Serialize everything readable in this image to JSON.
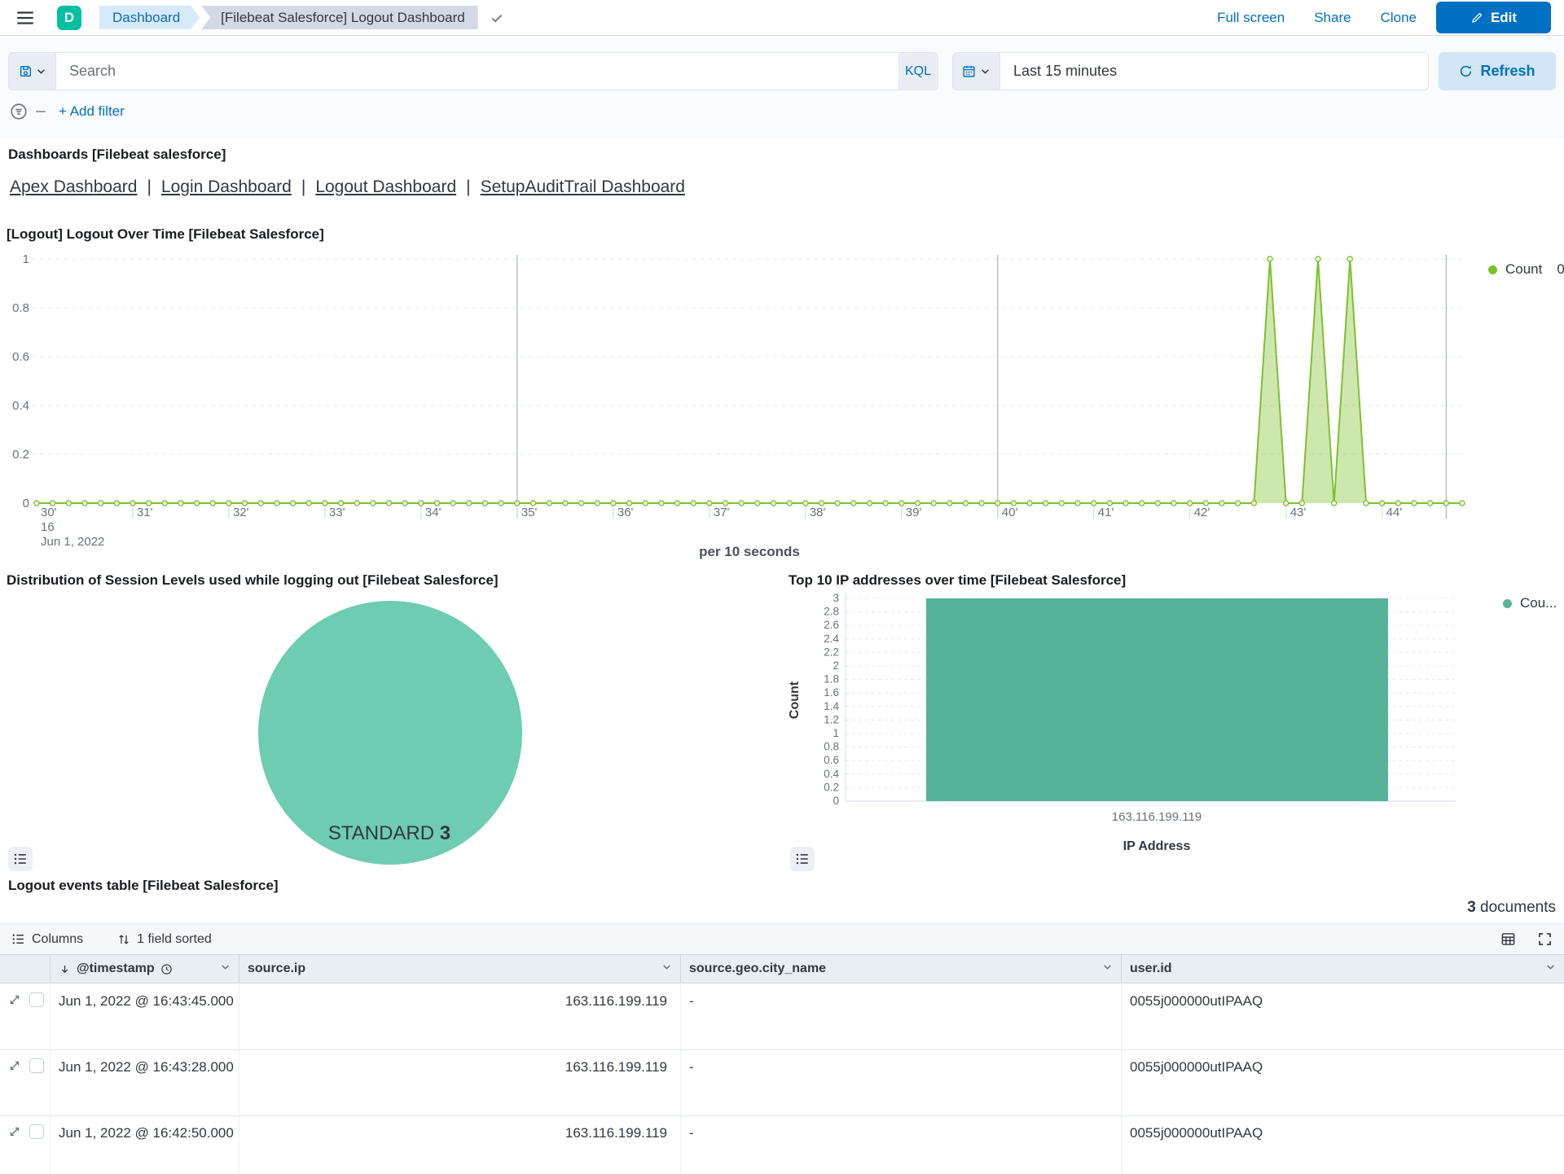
{
  "topbar": {
    "logo_letter": "D",
    "breadcrumbs": [
      "Dashboard",
      "[Filebeat Salesforce] Logout Dashboard"
    ],
    "actions": {
      "full_screen": "Full screen",
      "share": "Share",
      "clone": "Clone",
      "edit": "Edit"
    }
  },
  "query_bar": {
    "search_placeholder": "Search",
    "kql_label": "KQL",
    "time_range_value": "Last 15 minutes",
    "refresh_label": "Refresh",
    "add_filter_label": "+ Add filter"
  },
  "markdown_panel": {
    "heading": "Dashboards [Filebeat salesforce]",
    "separator": "|",
    "links": [
      "Apex Dashboard",
      "Login Dashboard",
      "Logout Dashboard",
      "SetupAuditTrail Dashboard"
    ]
  },
  "chart_data": [
    {
      "type": "area",
      "title": "[Logout] Logout Over Time [Filebeat Salesforce]",
      "xlabel": "per 10 seconds",
      "ylim": [
        0,
        1
      ],
      "yticks": [
        0,
        0.2,
        0.4,
        0.6,
        0.8,
        1
      ],
      "x_minute_ticks": [
        "30'",
        "31'",
        "32'",
        "33'",
        "34'",
        "35'",
        "36'",
        "37'",
        "38'",
        "39'",
        "40'",
        "41'",
        "42'",
        "43'",
        "44'"
      ],
      "x_first_tick_extra": [
        "16",
        "Jun 1, 2022"
      ],
      "x_start_time": "Jun 1, 2022 16:30:00",
      "points_per_minute": 6,
      "num_points": 90,
      "baseline_value": 0,
      "spikes": [
        {
          "time": "16:42:50",
          "index": 77,
          "value": 1
        },
        {
          "time": "16:43:20",
          "index": 80,
          "value": 1
        },
        {
          "time": "16:43:40",
          "index": 82,
          "value": 1
        }
      ],
      "vertical_gridline_indices": [
        30,
        60,
        88
      ],
      "legend": {
        "label": "Count",
        "value": "0"
      },
      "line_color": "#7dc12e",
      "fill_color": "rgba(125,193,46,0.38)"
    },
    {
      "type": "pie",
      "title": "Distribution of Session Levels used while logging out [Filebeat Salesforce]",
      "slices": [
        {
          "label": "STANDARD",
          "value": 3
        }
      ],
      "colors": [
        "#6dccb1"
      ]
    },
    {
      "type": "bar",
      "title": "Top 10 IP addresses over time [Filebeat Salesforce]",
      "categories": [
        "163.116.199.119"
      ],
      "values": [
        3
      ],
      "xlabel": "IP Address",
      "ylabel": "Count",
      "ylim": [
        0,
        3
      ],
      "ytick_step": 0.2,
      "legend": {
        "label": "Cou..."
      },
      "bar_color": "#54b399"
    }
  ],
  "table_panel": {
    "title": "Logout events table [Filebeat Salesforce]",
    "documents_count": "3",
    "documents_label": "documents",
    "toolbar": {
      "columns": "Columns",
      "sorted": "1 field sorted"
    },
    "columns": [
      "@timestamp",
      "source.ip",
      "source.geo.city_name",
      "user.id"
    ],
    "rows": [
      {
        "timestamp": "Jun 1, 2022 @ 16:43:45.000",
        "source_ip": "163.116.199.119",
        "city": "-",
        "user_id": "0055j000000utIPAAQ"
      },
      {
        "timestamp": "Jun 1, 2022 @ 16:43:28.000",
        "source_ip": "163.116.199.119",
        "city": "-",
        "user_id": "0055j000000utIPAAQ"
      },
      {
        "timestamp": "Jun 1, 2022 @ 16:42:50.000",
        "source_ip": "163.116.199.119",
        "city": "-",
        "user_id": "0055j000000utIPAAQ"
      }
    ]
  },
  "colors": {
    "primary_blue": "#0071c2",
    "area_green": "#7dc12e",
    "pie_teal": "#6dccb1",
    "bar_teal": "#54b399",
    "text": "#343741",
    "muted": "#69707d"
  }
}
